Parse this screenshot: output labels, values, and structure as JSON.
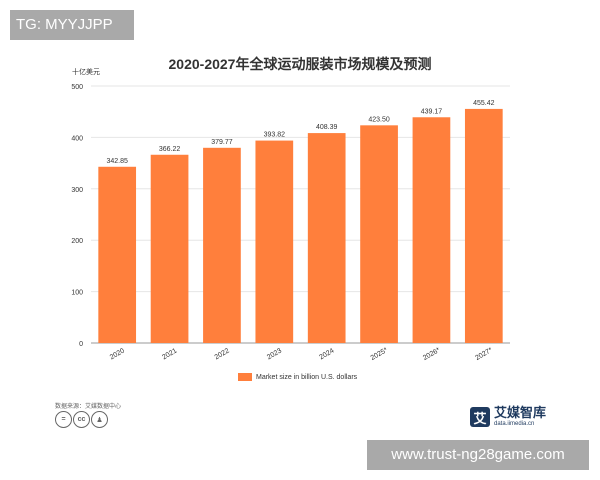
{
  "watermark_top": "TG: MYYJJPP",
  "watermark_bottom": "www.trust-ng28game.com",
  "chart_data": {
    "type": "bar",
    "title": "2020-2027年全球运动服装市场规模及预测",
    "unit_label": "十亿美元",
    "categories": [
      "2020",
      "2021",
      "2022",
      "2023",
      "2024",
      "2025*",
      "2026*",
      "2027*"
    ],
    "series": [
      {
        "name": "Market size in billion U.S. dollars",
        "values": [
          342.85,
          366.22,
          379.77,
          393.82,
          408.39,
          423.5,
          439.17,
          455.42
        ],
        "labels": [
          "342.85",
          "366.22",
          "379.77",
          "393.82",
          "408.39",
          "423.50",
          "439.17",
          "455.42"
        ]
      }
    ],
    "ylim": [
      0,
      500
    ],
    "yticks": [
      0,
      100,
      200,
      300,
      400,
      500
    ],
    "grid": true,
    "legend_position": "bottom",
    "bar_color": "#ff7f3c"
  },
  "footer": {
    "source": "数据来源：艾媒数据中心",
    "cc_icons": [
      "equal-icon",
      "cc-icon",
      "person-icon"
    ],
    "logo_name": "艾媒智库",
    "logo_url": "data.iimedia.cn",
    "logo_mark": "艾"
  }
}
